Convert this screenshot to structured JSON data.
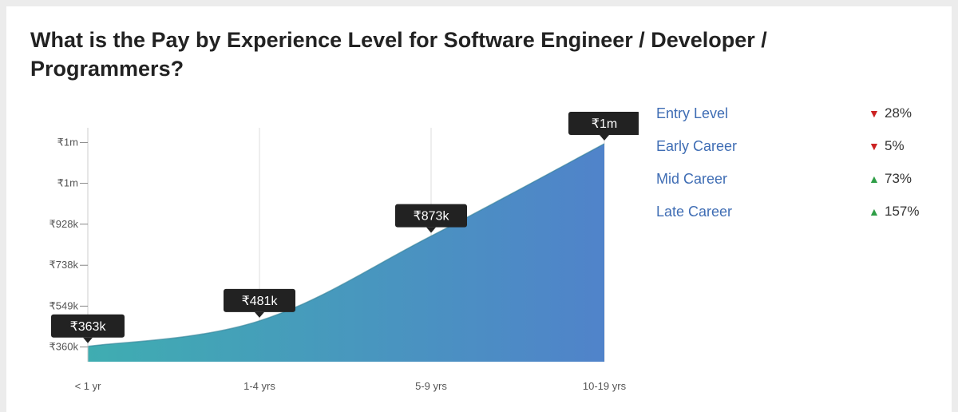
{
  "title": "What is the Pay by Experience Level for Software Engineer / Developer / Programmers?",
  "chart_data": {
    "type": "area",
    "categories": [
      "< 1 yr",
      "1-4 yrs",
      "5-9 yrs",
      "10-19 yrs"
    ],
    "values": [
      363000,
      481000,
      873000,
      1300000
    ],
    "value_labels": [
      "₹363k",
      "₹481k",
      "₹873k",
      "₹1m"
    ],
    "y_ticks": [
      {
        "value": 360000,
        "label": "₹360k"
      },
      {
        "value": 549000,
        "label": "₹549k"
      },
      {
        "value": 738000,
        "label": "₹738k"
      },
      {
        "value": 928000,
        "label": "₹928k"
      },
      {
        "value": 1117000,
        "label": "₹1m"
      },
      {
        "value": 1306000,
        "label": "₹1m"
      }
    ],
    "ylim": [
      292000,
      1374000
    ],
    "gradient_colors": [
      "#3fadb1",
      "#5083ca"
    ],
    "grid": "vertical"
  },
  "legend": [
    {
      "label": "Entry Level",
      "direction": "down",
      "change": "28%"
    },
    {
      "label": "Early Career",
      "direction": "down",
      "change": "5%"
    },
    {
      "label": "Mid Career",
      "direction": "up",
      "change": "73%"
    },
    {
      "label": "Late Career",
      "direction": "up",
      "change": "157%"
    }
  ]
}
